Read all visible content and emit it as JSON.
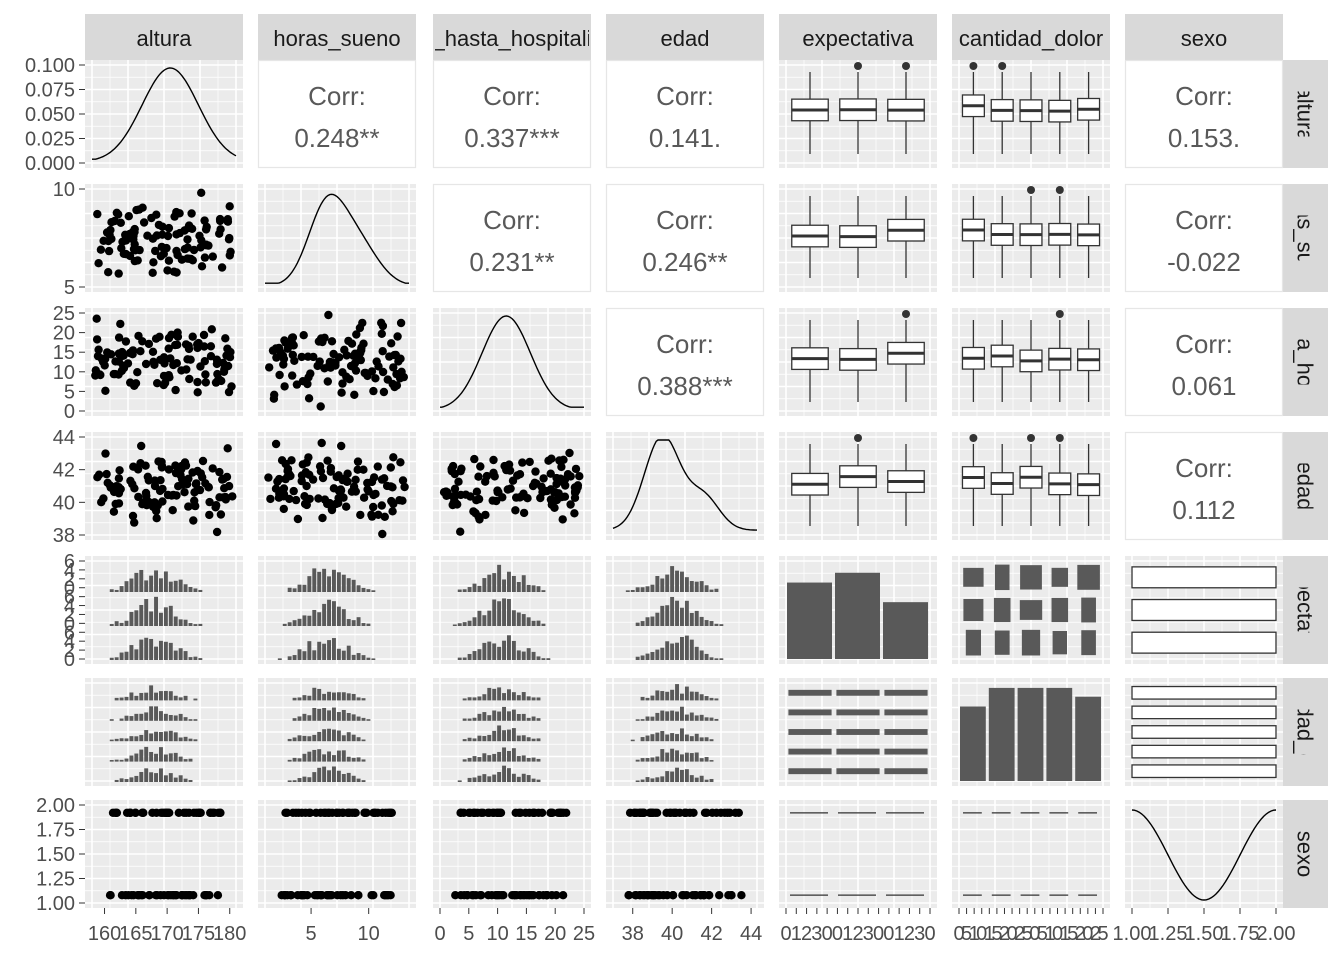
{
  "chart_data": {
    "type": "pairs",
    "variables": [
      "altura",
      "horas_sueno",
      "_hasta_hospitali",
      "edad",
      "expectativa",
      "cantidad_dolor",
      "sexo"
    ],
    "row_labels": [
      "altura",
      "oras_suen",
      "asta_hospi",
      "edad",
      "expectativa",
      "ntidad_dol",
      "sexo"
    ],
    "correlation_label": "Corr:",
    "correlations": [
      {
        "row": 0,
        "col": 1,
        "value": "0.248**"
      },
      {
        "row": 0,
        "col": 2,
        "value": "0.337***"
      },
      {
        "row": 0,
        "col": 3,
        "value": "0.141."
      },
      {
        "row": 0,
        "col": 6,
        "value": "0.153."
      },
      {
        "row": 1,
        "col": 2,
        "value": "0.231**"
      },
      {
        "row": 1,
        "col": 3,
        "value": "0.246**"
      },
      {
        "row": 1,
        "col": 6,
        "value": "-0.022"
      },
      {
        "row": 2,
        "col": 3,
        "value": "0.388***"
      },
      {
        "row": 2,
        "col": 6,
        "value": "0.061"
      },
      {
        "row": 3,
        "col": 6,
        "value": "0.112"
      }
    ],
    "x_axes": [
      {
        "min": 158,
        "max": 181,
        "ticks": [
          "160",
          "165",
          "170",
          "175",
          "180"
        ],
        "tick_values": [
          160,
          165,
          170,
          175,
          180
        ]
      },
      {
        "min": 1,
        "max": 13.5,
        "ticks": [
          "5",
          "10"
        ],
        "tick_values": [
          5,
          10
        ]
      },
      {
        "min": 0,
        "max": 25,
        "ticks": [
          "0",
          "5",
          "10",
          "15",
          "20",
          "25"
        ],
        "tick_values": [
          0,
          5,
          10,
          15,
          20,
          25
        ]
      },
      {
        "min": 37,
        "max": 44.3,
        "ticks": [
          "38",
          "40",
          "42",
          "44"
        ],
        "tick_values": [
          38,
          40,
          42,
          44
        ]
      },
      {
        "min": 0,
        "max": 3,
        "ticks": [
          "0",
          "1",
          "2",
          "3",
          "0",
          "0",
          "1",
          "2",
          "3",
          "0",
          "0",
          "1",
          "2",
          "3",
          "0"
        ],
        "tick_values": []
      },
      {
        "min": 0,
        "max": 5,
        "ticks": [
          "0",
          "5",
          "1",
          "0",
          "1",
          "5",
          "2",
          "0",
          "2",
          "5",
          "0",
          "5",
          "1",
          "0",
          "1",
          "5",
          "2",
          "0",
          "2",
          "5"
        ],
        "tick_values": []
      },
      {
        "min": 1,
        "max": 2,
        "ticks": [
          "1.00",
          "1.25",
          "1.50",
          "1.75",
          "2.00"
        ],
        "tick_values": [
          1,
          1.25,
          1.5,
          1.75,
          2
        ]
      }
    ],
    "y_axes": [
      {
        "ticks": [
          "0.100",
          "0.075",
          "0.050",
          "0.025",
          "0.000"
        ],
        "tick_values": [
          0.1,
          0.075,
          0.05,
          0.025,
          0
        ]
      },
      {
        "ticks": [
          "10",
          "5"
        ],
        "tick_values": [
          10,
          5
        ]
      },
      {
        "ticks": [
          "25",
          "20",
          "15",
          "10",
          "5",
          "0"
        ],
        "tick_values": [
          25,
          20,
          15,
          10,
          5,
          0
        ]
      },
      {
        "ticks": [
          "44",
          "42",
          "40",
          "38"
        ],
        "tick_values": [
          44,
          42,
          40,
          38
        ]
      },
      {
        "ticks": [
          "6",
          "4",
          "2",
          "0",
          "6",
          "4",
          "2",
          "0",
          "6",
          "4",
          "2",
          "0"
        ],
        "tick_values": []
      },
      {
        "ticks": [],
        "tick_values": []
      },
      {
        "ticks": [
          "2.00",
          "1.75",
          "1.50",
          "1.25",
          "1.00"
        ],
        "tick_values": [
          2,
          1.75,
          1.5,
          1.25,
          1
        ]
      }
    ],
    "densities": [
      {
        "var": "altura",
        "mode": 170.5,
        "sd": 4.5
      },
      {
        "var": "horas_sueno",
        "mode": 6.3,
        "sd": 2.2
      },
      {
        "var": "_hasta_hospitali",
        "mode": 11.5,
        "sd": 4.2
      },
      {
        "var": "edad",
        "mode": 39.5,
        "sd": 1.3
      },
      {
        "var": "sexo",
        "shape": "bimodal",
        "peaks": [
          1,
          2
        ]
      }
    ],
    "category_bars": {
      "expectativa": [
        0.78,
        0.88,
        0.58
      ],
      "cantidad_dolor": [
        0.76,
        0.95,
        0.95,
        0.95,
        0.86
      ]
    },
    "grid": true,
    "legend": "none"
  }
}
